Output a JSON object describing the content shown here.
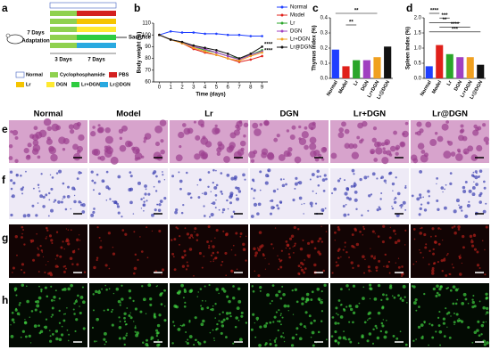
{
  "panel_labels": [
    "a",
    "b",
    "c",
    "d",
    "e",
    "f",
    "g",
    "h"
  ],
  "schematic": {
    "adaptation_days": "7 Days",
    "adaptation": "Adaptation",
    "phase1": "3 Days",
    "phase2": "7 Days",
    "endpoint": "Sacrifice",
    "legend": [
      "Normal",
      "Cyclophosphamide",
      "PBS",
      "Lr",
      "DGN",
      "Lr+DGN",
      "Lr@DGN"
    ]
  },
  "columns": [
    "Normal",
    "Model",
    "Lr",
    "DGN",
    "Lr+DGN",
    "Lr@DGN"
  ],
  "chart_data": [
    {
      "type": "line",
      "xlabel": "Time (days)",
      "ylabel": "Body weight (%)",
      "x": [
        0,
        1,
        2,
        3,
        4,
        5,
        6,
        7,
        8,
        9
      ],
      "xlim": [
        -0.5,
        9.5
      ],
      "xticks": [
        0,
        1,
        2,
        3,
        4,
        5,
        6,
        7,
        8,
        9
      ],
      "ylim": [
        60,
        110
      ],
      "yticks": [
        60,
        70,
        80,
        90,
        100,
        110
      ],
      "series": [
        {
          "name": "Normal",
          "color": "#1f3fff",
          "values": [
            100,
            103,
            102,
            102,
            101,
            101,
            100,
            100,
            99,
            99
          ]
        },
        {
          "name": "Model",
          "color": "#e0201a",
          "values": [
            100,
            96,
            93,
            88,
            85,
            83,
            80,
            77,
            79,
            82
          ]
        },
        {
          "name": "Lr",
          "color": "#2aa52a",
          "values": [
            100,
            96,
            94,
            90,
            87,
            85,
            82,
            80,
            83,
            87
          ]
        },
        {
          "name": "DGN",
          "color": "#a040c0",
          "values": [
            100,
            96,
            94,
            90,
            88,
            85,
            82,
            79,
            83,
            86
          ]
        },
        {
          "name": "Lr+DGN",
          "color": "#f0a020",
          "values": [
            100,
            96,
            93,
            89,
            86,
            83,
            80,
            78,
            82,
            85
          ]
        },
        {
          "name": "Lr@DGN",
          "color": "#111111",
          "values": [
            100,
            96,
            94,
            91,
            89,
            87,
            84,
            80,
            84,
            90
          ]
        }
      ],
      "annotations": [
        "****",
        "****"
      ]
    },
    {
      "type": "bar",
      "ylabel": "Thymus index (%)",
      "categories": [
        "Normal",
        "Model",
        "Lr",
        "DGN",
        "Lr+DGN",
        "Lr@DGN"
      ],
      "values": [
        0.19,
        0.08,
        0.12,
        0.12,
        0.14,
        0.21
      ],
      "colors": [
        "#1f3fff",
        "#e0201a",
        "#2aa52a",
        "#a040c0",
        "#f0a020",
        "#111111"
      ],
      "ylim": [
        0,
        0.4
      ],
      "yticks": [
        {
          "value": 0,
          "label": "0.0"
        },
        0.1,
        0.2,
        0.3,
        0.4
      ],
      "annotations": [
        "**",
        "**"
      ]
    },
    {
      "type": "bar",
      "ylabel": "Spleen index (%)",
      "categories": [
        "Normal",
        "Model",
        "Lr",
        "DGN",
        "Lr+DGN",
        "Lr@DGN"
      ],
      "values": [
        0.4,
        1.1,
        0.8,
        0.7,
        0.7,
        0.45
      ],
      "colors": [
        "#1f3fff",
        "#e0201a",
        "#2aa52a",
        "#a040c0",
        "#f0a020",
        "#111111"
      ],
      "ylim": [
        0,
        2
      ],
      "yticks": [
        {
          "value": 0,
          "label": "0.0"
        },
        0.5,
        {
          "value": 1,
          "label": "1.0"
        },
        1.5,
        {
          "value": 2,
          "label": "2.0"
        }
      ],
      "annotations": [
        "****",
        "***",
        "**",
        "****",
        "***"
      ]
    }
  ]
}
